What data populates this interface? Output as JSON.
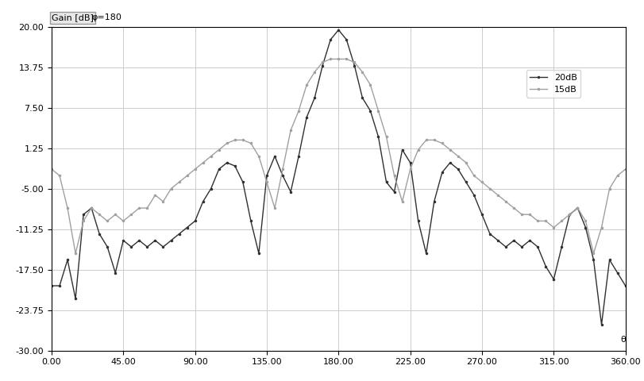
{
  "chart_data": {
    "type": "line",
    "ylabel": "Gain [dB]",
    "annotation": "φ=180",
    "xlabel": "θ",
    "x": [
      0,
      5,
      10,
      15,
      20,
      25,
      30,
      35,
      40,
      45,
      50,
      55,
      60,
      65,
      70,
      75,
      80,
      85,
      90,
      95,
      100,
      105,
      110,
      115,
      120,
      125,
      130,
      135,
      140,
      145,
      150,
      155,
      160,
      165,
      170,
      175,
      180,
      185,
      190,
      195,
      200,
      205,
      210,
      215,
      220,
      225,
      230,
      235,
      240,
      245,
      250,
      255,
      260,
      265,
      270,
      275,
      280,
      285,
      290,
      295,
      300,
      305,
      310,
      315,
      320,
      325,
      330,
      335,
      340,
      345,
      350,
      355,
      360
    ],
    "series": [
      {
        "name": "20dB",
        "color": "#303030",
        "marker": "dot",
        "line_style": "solid",
        "values": [
          -20,
          -20,
          -16,
          -22,
          -9,
          -8,
          -12,
          -14,
          -18,
          -13,
          -14,
          -13,
          -14,
          -13,
          -14,
          -13,
          -12,
          -11,
          -10,
          -7,
          -5,
          -2,
          -1,
          -1.5,
          -4,
          -10,
          -15,
          -3,
          0,
          -3,
          -5.5,
          0,
          6,
          9,
          14,
          18,
          19.5,
          18,
          14,
          9,
          7,
          3,
          -4,
          -5.5,
          1,
          -1,
          -10,
          -15,
          -7,
          -2.5,
          -1,
          -2,
          -4,
          -6,
          -9,
          -12,
          -13,
          -14,
          -13,
          -14,
          -13,
          -14,
          -17,
          -19,
          -14,
          -9,
          -8,
          -11,
          -16,
          -26,
          -16,
          -18,
          -20
        ]
      },
      {
        "name": "15dB",
        "color": "#a0a0a0",
        "marker": "dot",
        "line_style": "solid",
        "values": [
          -2,
          -3,
          -8,
          -15,
          -10,
          -8,
          -9,
          -10,
          -9,
          -10,
          -9,
          -8,
          -8,
          -6,
          -7,
          -5,
          -4,
          -3,
          -2,
          -1,
          0,
          1,
          2,
          2.5,
          2.5,
          2,
          0,
          -4,
          -8,
          -2,
          4,
          7,
          11,
          13,
          14.5,
          15,
          15,
          15,
          14.5,
          13,
          11,
          7,
          3,
          -3,
          -7,
          -2,
          1,
          2.5,
          2.5,
          2,
          1,
          0,
          -1,
          -3,
          -4,
          -5,
          -6,
          -7,
          -8,
          -9,
          -9,
          -10,
          -10,
          -11,
          -10,
          -9,
          -8,
          -10,
          -15,
          -11,
          -5,
          -3,
          -2
        ]
      }
    ],
    "xlim": [
      0,
      360
    ],
    "xticks": [
      {
        "value": 0,
        "label": "0.00"
      },
      {
        "value": 45,
        "label": "45.00"
      },
      {
        "value": 90,
        "label": "90.00"
      },
      {
        "value": 135,
        "label": "135.00"
      },
      {
        "value": 180,
        "label": "180.00"
      },
      {
        "value": 225,
        "label": "225.00"
      },
      {
        "value": 270,
        "label": "270.00"
      },
      {
        "value": 315,
        "label": "315.00"
      },
      {
        "value": 360,
        "label": "360.00"
      }
    ],
    "ylim": [
      -30,
      20
    ],
    "yticks": [
      {
        "value": -30,
        "label": "-30.00"
      },
      {
        "value": -23.75,
        "label": "-23.75"
      },
      {
        "value": -17.5,
        "label": "-17.50"
      },
      {
        "value": -11.25,
        "label": "-11.25"
      },
      {
        "value": -5,
        "label": "-5.00"
      },
      {
        "value": 1.25,
        "label": "1.25"
      },
      {
        "value": 7.5,
        "label": "7.50"
      },
      {
        "value": 13.75,
        "label": "13.75"
      },
      {
        "value": 20,
        "label": "20.00"
      }
    ],
    "grid": true,
    "legend": "upper right"
  }
}
